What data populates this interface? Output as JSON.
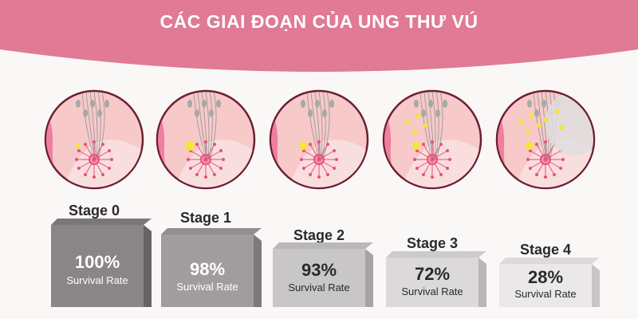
{
  "header": {
    "title": "CÁC GIAI ĐOẠN CỦA UNG THƯ VÚ"
  },
  "stages": [
    {
      "label": "Stage 0",
      "percent": "100%",
      "caption": "Survival Rate",
      "survival_value": 100,
      "box_color": "#8a8587",
      "text_color": "#ffffff"
    },
    {
      "label": "Stage 1",
      "percent": "98%",
      "caption": "Survival Rate",
      "survival_value": 98,
      "box_color": "#a19d9f",
      "text_color": "#ffffff"
    },
    {
      "label": "Stage 2",
      "percent": "93%",
      "caption": "Survival Rate",
      "survival_value": 93,
      "box_color": "#c9c6c7",
      "text_color": "#2a2a2a"
    },
    {
      "label": "Stage 3",
      "percent": "72%",
      "caption": "Survival Rate",
      "survival_value": 72,
      "box_color": "#dcd9da",
      "text_color": "#2a2a2a"
    },
    {
      "label": "Stage 4",
      "percent": "28%",
      "caption": "Survival Rate",
      "survival_value": 28,
      "box_color": "#eae8e9",
      "text_color": "#2a2a2a"
    }
  ],
  "colors": {
    "banner": "#e07a95",
    "circle_border": "#6b1f33",
    "circle_fill": "#f7c9c9",
    "tumor": "#f5e43a",
    "lobule": "#e8507a"
  }
}
